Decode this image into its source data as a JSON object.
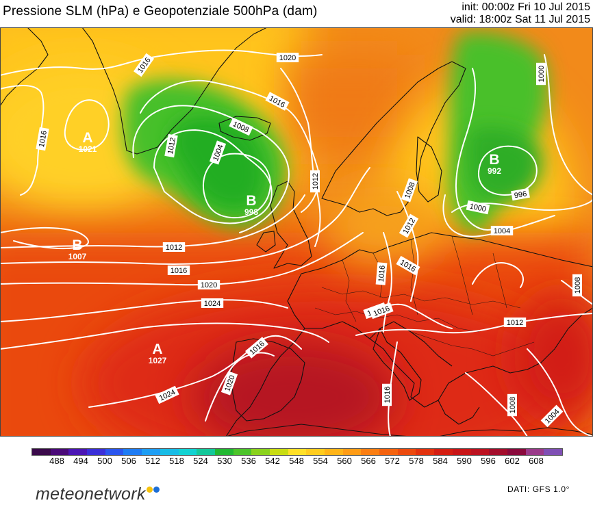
{
  "header": {
    "title": "Pressione SLM (hPa) e Geopotenziale 500hPa (dam)",
    "init": "init: 00:00z Fri 10 Jul 2015",
    "valid": "valid: 18:00z Sat 11 Jul 2015"
  },
  "pressure_centers": [
    {
      "type": "A",
      "value": "1021",
      "color": "#ffffff"
    },
    {
      "type": "B",
      "value": "998",
      "color": "#ffffff"
    },
    {
      "type": "B",
      "value": "992",
      "color": "#ffffff"
    },
    {
      "type": "B",
      "value": "1007",
      "color": "#ffffff"
    },
    {
      "type": "A",
      "value": "1027",
      "color": "#ffffff"
    }
  ],
  "isobar_labels": [
    "1016",
    "1020",
    "1016",
    "1016",
    "1012",
    "1004",
    "1008",
    "1012",
    "1000",
    "996",
    "1000",
    "1004",
    "1008",
    "1012",
    "1012",
    "1016",
    "1016",
    "1016",
    "1020",
    "1024",
    "1016",
    "1016",
    "1020",
    "1024",
    "1016",
    "1012",
    "1008",
    "1008",
    "1004",
    "1016"
  ],
  "scale": {
    "ticks": [
      "488",
      "494",
      "500",
      "506",
      "512",
      "518",
      "524",
      "530",
      "536",
      "542",
      "548",
      "554",
      "560",
      "566",
      "572",
      "578",
      "584",
      "590",
      "596",
      "602",
      "608"
    ],
    "colors": [
      "#3a0a4a",
      "#4a0a78",
      "#4b16b4",
      "#3b2fd8",
      "#2a55ee",
      "#1e7cf4",
      "#1e9ef4",
      "#18bce6",
      "#12d2d2",
      "#14c89a",
      "#22b832",
      "#4cc42a",
      "#8ad21c",
      "#c8dc12",
      "#ffe028",
      "#ffcc1e",
      "#ffb418",
      "#ff9c16",
      "#fb7e12",
      "#f4620e",
      "#ec4a0e",
      "#e2320e",
      "#d41e12",
      "#c81618",
      "#bc1220",
      "#a40e2c",
      "#8a0a3c",
      "#9a3a8a",
      "#7f4fb4"
    ]
  },
  "footer": {
    "logo": "meteonetwork",
    "logo_dot_colors": [
      "#f6c20b",
      "#1e6fd6"
    ],
    "source": "DATI: GFS 1.0°"
  }
}
